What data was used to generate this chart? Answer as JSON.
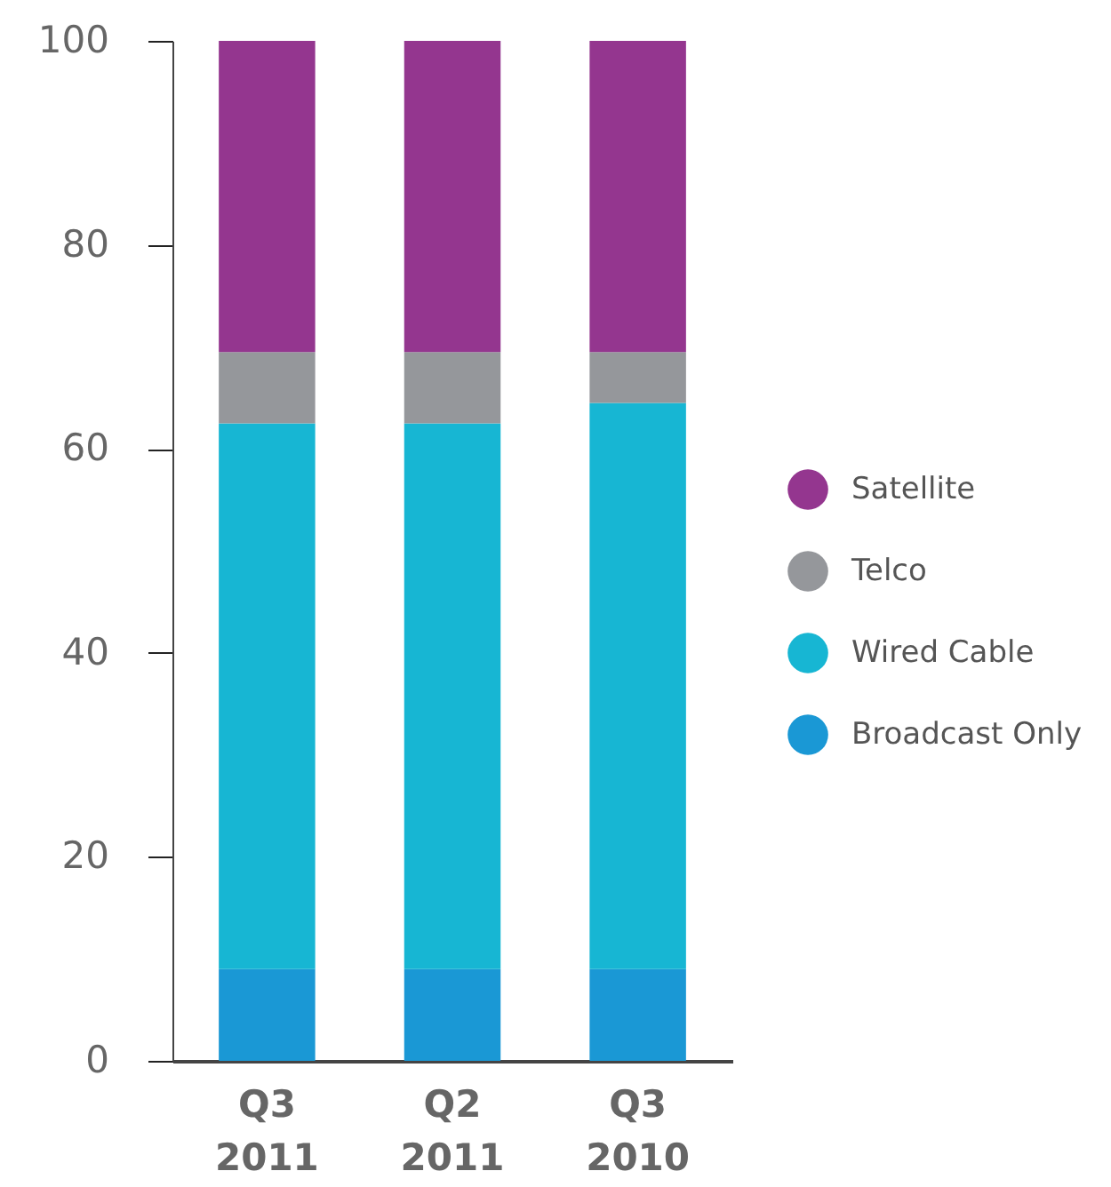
{
  "chart_data": {
    "type": "bar",
    "stacked": true,
    "categories": [
      "Q3 2011",
      "Q2 2011",
      "Q3 2010"
    ],
    "series": [
      {
        "name": "Broadcast Only",
        "color": "#1a98d5",
        "values": [
          9,
          9,
          9
        ]
      },
      {
        "name": "Wired Cable",
        "color": "#17b6d3",
        "values": [
          53.5,
          53.5,
          55.5
        ]
      },
      {
        "name": "Telco",
        "color": "#95979b",
        "values": [
          7,
          7,
          5
        ]
      },
      {
        "name": "Satellite",
        "color": "#94368f",
        "values": [
          30.5,
          30.5,
          30.5
        ]
      }
    ],
    "ylim": [
      0,
      100
    ],
    "yticks": [
      0,
      20,
      40,
      60,
      80,
      100
    ],
    "grid": false,
    "legend": "right"
  }
}
